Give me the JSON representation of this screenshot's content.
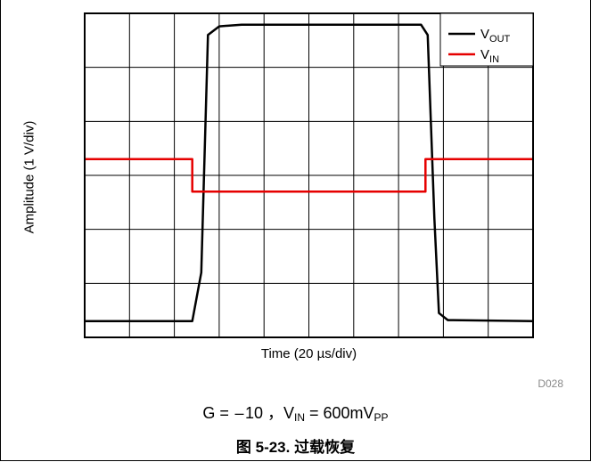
{
  "chart_data": {
    "type": "line",
    "xlabel": "Time (20 µs/div)",
    "ylabel": "Amplitude (1 V/div)",
    "divisions": {
      "x": 10,
      "y": 6
    },
    "grid": true,
    "legend_placement": "top-right",
    "series": [
      {
        "name": "OUT",
        "name_main": "V",
        "name_sub": "OUT",
        "color": "#000000",
        "points": [
          [
            0,
            -2.7
          ],
          [
            4.8,
            -2.7
          ],
          [
            5.2,
            -1.8
          ],
          [
            5.5,
            2.6
          ],
          [
            6.0,
            2.76
          ],
          [
            7.0,
            2.79
          ],
          [
            15.0,
            2.79
          ],
          [
            15.3,
            2.6
          ],
          [
            15.6,
            -0.8
          ],
          [
            15.8,
            -2.55
          ],
          [
            16.2,
            -2.68
          ],
          [
            20,
            -2.7
          ]
        ]
      },
      {
        "name": "IN",
        "name_main": "V",
        "name_sub": "IN",
        "color": "#e60000",
        "points": [
          [
            0,
            0.3
          ],
          [
            4.8,
            0.3
          ],
          [
            4.8,
            -0.3
          ],
          [
            15.2,
            -0.3
          ],
          [
            15.2,
            0.3
          ],
          [
            20,
            0.3
          ]
        ]
      }
    ],
    "x_range": [
      0,
      20
    ],
    "y_range": [
      -3,
      3
    ]
  },
  "corner_code": "D028",
  "caption": {
    "gain": "G =  – 10 ，",
    "vin_main": "V",
    "vin_sub": "IN",
    "vin_value": " = 600mV",
    "pp_sub": "PP"
  },
  "figure_title": "图 5-23. 过载恢复"
}
